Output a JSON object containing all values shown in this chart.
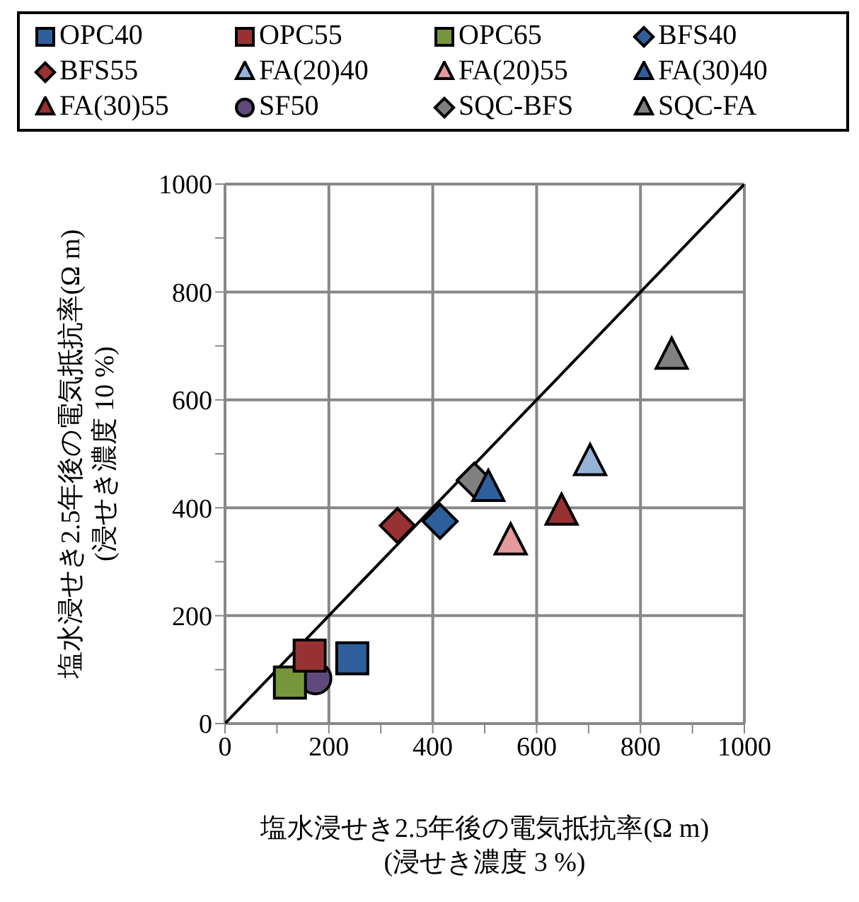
{
  "chart_data": {
    "type": "scatter",
    "xlabel": "塩水浸せき2.5年後の電気抵抗率(Ω m)\n(浸せき濃度 3 %)",
    "ylabel": "塩水浸せき2.5年後の電気抵抗率(Ω m)\n(浸せき濃度 10 %)",
    "xlim": [
      0,
      1000
    ],
    "ylim": [
      0,
      1000
    ],
    "xticks": [
      0,
      {
        "value": 100,
        "label": null
      },
      200,
      {
        "value": 300,
        "label": null
      },
      400,
      {
        "value": 500,
        "label": null
      },
      600,
      {
        "value": 700,
        "label": null
      },
      800,
      {
        "value": 900,
        "label": null
      },
      1000
    ],
    "yticks": [
      0,
      {
        "value": 100,
        "label": null
      },
      200,
      {
        "value": 300,
        "label": null
      },
      400,
      {
        "value": 500,
        "label": null
      },
      600,
      {
        "value": 700,
        "label": null
      },
      800,
      {
        "value": 900,
        "label": null
      },
      1000
    ],
    "grid": true,
    "legend": "top",
    "series": [
      {
        "name": "OPC40",
        "color": "#2e5f9a",
        "marker": "square",
        "x": [
          245
        ],
        "values": [
          121
        ]
      },
      {
        "name": "OPC55",
        "color": "#983232",
        "marker": "square",
        "x": [
          163
        ],
        "values": [
          126
        ]
      },
      {
        "name": "OPC65",
        "color": "#77963b",
        "marker": "square",
        "x": [
          125
        ],
        "values": [
          76
        ]
      },
      {
        "name": "BFS40",
        "color": "#2e5f9a",
        "marker": "diamond",
        "x": [
          414
        ],
        "values": [
          375
        ]
      },
      {
        "name": "BFS55",
        "color": "#983232",
        "marker": "diamond",
        "x": [
          332
        ],
        "values": [
          367
        ]
      },
      {
        "name": "FA(20)40",
        "color": "#95b3d7",
        "marker": "triangle",
        "x": [
          703
        ],
        "values": [
          483
        ]
      },
      {
        "name": "FA(20)55",
        "color": "#e6999a",
        "marker": "triangle",
        "x": [
          550
        ],
        "values": [
          336
        ]
      },
      {
        "name": "FA(30)40",
        "color": "#2e5f9a",
        "marker": "triangle",
        "x": [
          507
        ],
        "values": [
          435
        ]
      },
      {
        "name": "FA(30)55",
        "color": "#983232",
        "marker": "triangle",
        "x": [
          648
        ],
        "values": [
          391
        ]
      },
      {
        "name": "SF50",
        "color": "#604a7b",
        "marker": "circle",
        "x": [
          174
        ],
        "values": [
          84
        ]
      },
      {
        "name": "SQC-BFS",
        "color": "#808080",
        "marker": "diamond",
        "x": [
          480
        ],
        "values": [
          451
        ]
      },
      {
        "name": "SQC-FA",
        "color": "#808080",
        "marker": "triangle",
        "x": [
          860
        ],
        "values": [
          680
        ]
      },
      {
        "type": "line",
        "color": "#000000",
        "x": [
          0,
          1000
        ],
        "values": [
          0,
          1000
        ]
      }
    ]
  }
}
